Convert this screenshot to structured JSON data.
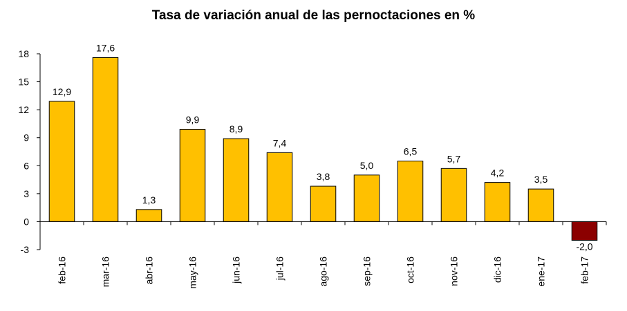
{
  "chart_data": {
    "type": "bar",
    "title": "Tasa de variación anual de las pernoctaciones en %",
    "xlabel": "",
    "ylabel": "",
    "categories": [
      "feb-16",
      "mar-16",
      "abr-16",
      "may-16",
      "jun-16",
      "jul-16",
      "ago-16",
      "sep-16",
      "oct-16",
      "nov-16",
      "dic-16",
      "ene-17",
      "feb-17"
    ],
    "values": [
      12.9,
      17.6,
      1.3,
      9.9,
      8.9,
      7.4,
      3.8,
      5.0,
      6.5,
      5.7,
      4.2,
      3.5,
      -2.0
    ],
    "value_labels": [
      "12,9",
      "17,6",
      "1,3",
      "9,9",
      "8,9",
      "7,4",
      "3,8",
      "5,0",
      "6,5",
      "5,7",
      "4,2",
      "3,5",
      "-2,0"
    ],
    "ylim": [
      -3,
      18
    ],
    "yticks": [
      -3,
      0,
      3,
      6,
      9,
      12,
      15,
      18
    ],
    "grid": false,
    "legend": "none",
    "colors": {
      "positive_bar": "#FFC000",
      "negative_bar": "#8B0000",
      "bar_edge": "#000000"
    }
  }
}
